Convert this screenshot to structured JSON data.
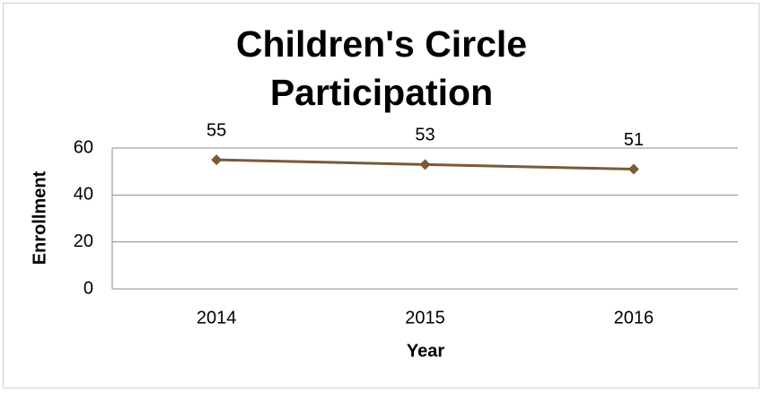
{
  "chart_data": {
    "type": "line",
    "title": "Children's Circle Participation",
    "x_label": "Year",
    "y_label": "Enrollment",
    "categories": [
      "2014",
      "2015",
      "2016"
    ],
    "series": [
      {
        "name": "Enrollment",
        "color": "#7a5a3a",
        "values": [
          55,
          53,
          51
        ]
      }
    ],
    "ylim": [
      0,
      60
    ],
    "yticks": [
      0,
      20,
      40,
      60
    ],
    "grid": true,
    "data_labels": true
  }
}
